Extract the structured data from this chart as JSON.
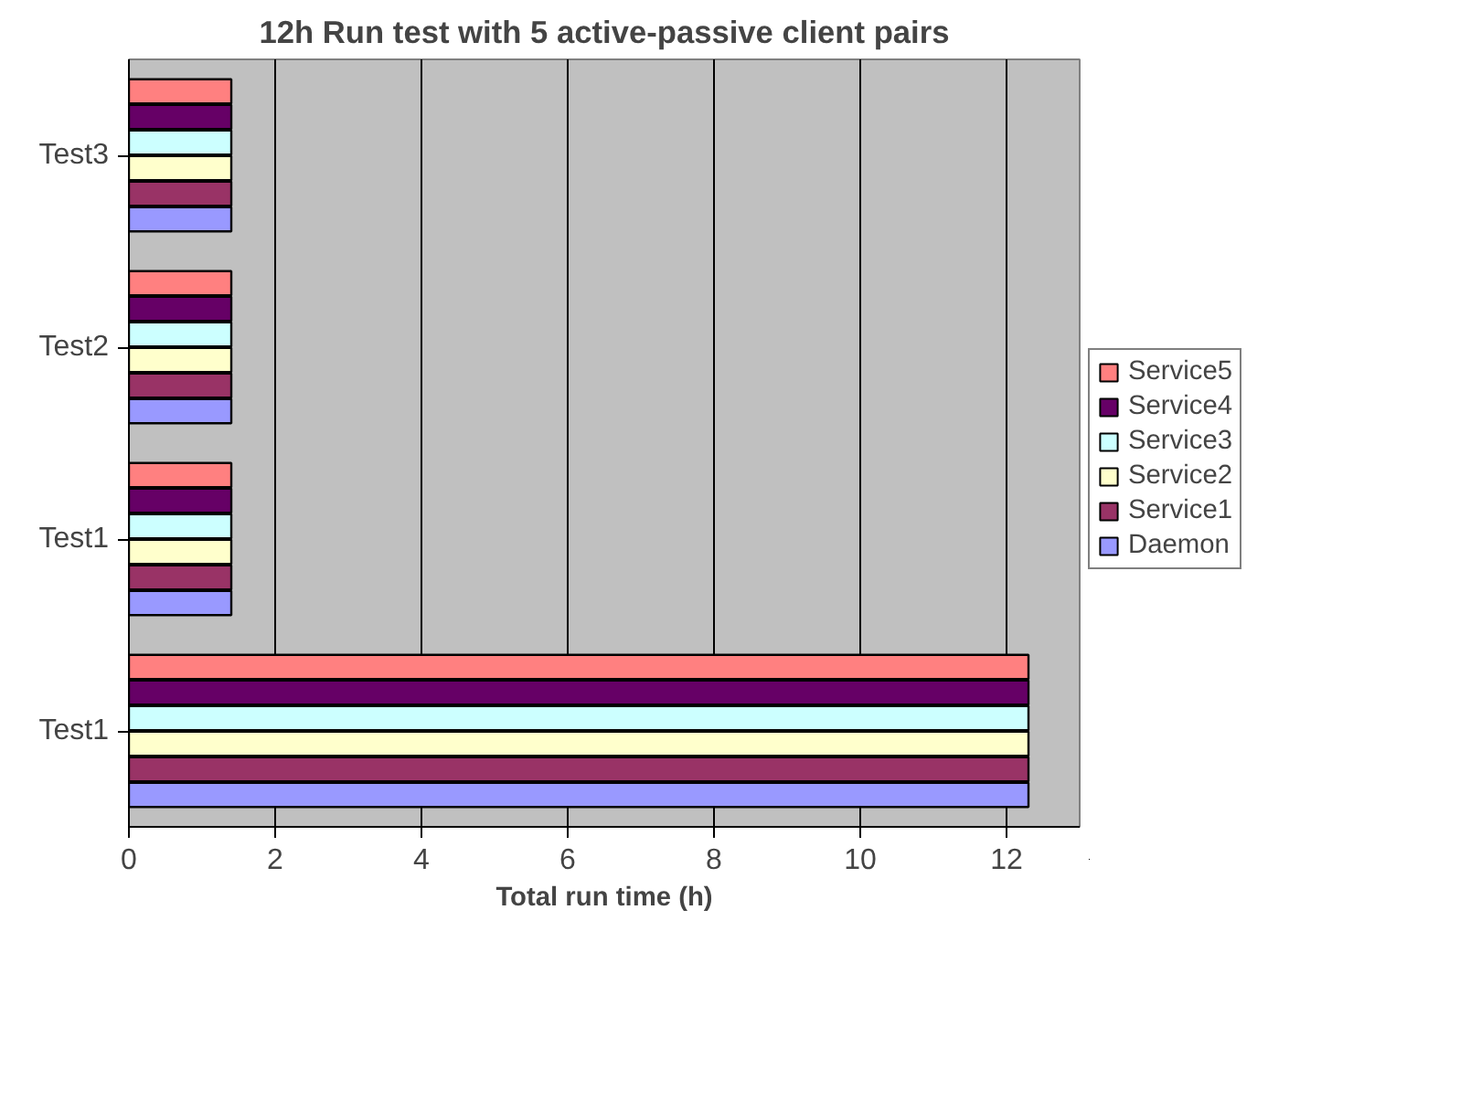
{
  "chart_data": {
    "type": "bar",
    "orientation": "horizontal",
    "title": "12h Run test with 5 active-passive client pairs",
    "xlabel": "Total run time (h)",
    "categories": [
      "Test3",
      "Test2",
      "Test1",
      "Test1"
    ],
    "series": [
      {
        "name": "Daemon",
        "color": "#9999ff",
        "values": [
          1.4,
          1.4,
          1.4,
          12.3
        ]
      },
      {
        "name": "Service1",
        "color": "#993366",
        "values": [
          1.4,
          1.4,
          1.4,
          12.3
        ]
      },
      {
        "name": "Service2",
        "color": "#ffffcc",
        "values": [
          1.4,
          1.4,
          1.4,
          12.3
        ]
      },
      {
        "name": "Service3",
        "color": "#ccffff",
        "values": [
          1.4,
          1.4,
          1.4,
          12.3
        ]
      },
      {
        "name": "Service4",
        "color": "#660066",
        "values": [
          1.4,
          1.4,
          1.4,
          12.3
        ]
      },
      {
        "name": "Service5",
        "color": "#ff8080",
        "values": [
          1.4,
          1.4,
          1.4,
          12.3
        ]
      }
    ],
    "xlim": [
      0,
      13
    ],
    "xticks": [
      0,
      2,
      4,
      6,
      8,
      10,
      12
    ],
    "grid": "x",
    "legend": "right"
  }
}
